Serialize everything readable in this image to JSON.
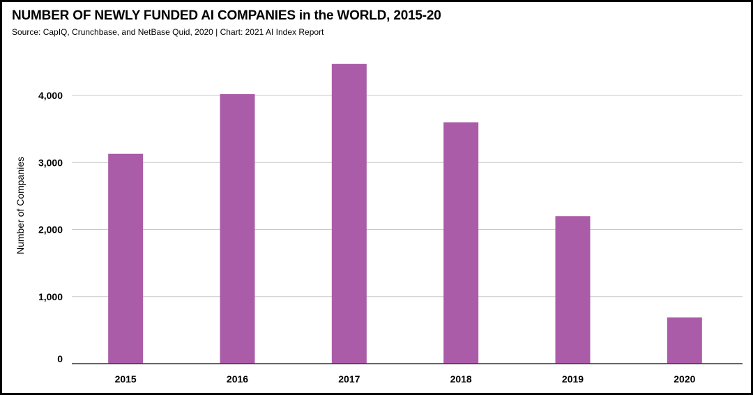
{
  "title": "NUMBER OF NEWLY FUNDED AI COMPANIES in the WORLD, 2015-20",
  "subtitle": "Source: CapIQ, Crunchbase, and NetBase Quid, 2020 | Chart: 2021 AI Index Report",
  "colors": {
    "bar": "#ab5ca8",
    "grid": "#c8c8c8",
    "axis": "#333333"
  },
  "chart_data": {
    "type": "bar",
    "categories": [
      "2015",
      "2016",
      "2017",
      "2018",
      "2019",
      "2020"
    ],
    "values": [
      3130,
      4020,
      4470,
      3600,
      2200,
      690
    ],
    "ylabel": "Number of Companies",
    "xlabel": "",
    "ylim": [
      0,
      4800
    ],
    "yticks": [
      0,
      1000,
      2000,
      3000,
      4000
    ],
    "ytick_labels": [
      "0",
      "1,000",
      "2,000",
      "3,000",
      "4,000"
    ],
    "grid": true,
    "legend": "none"
  }
}
